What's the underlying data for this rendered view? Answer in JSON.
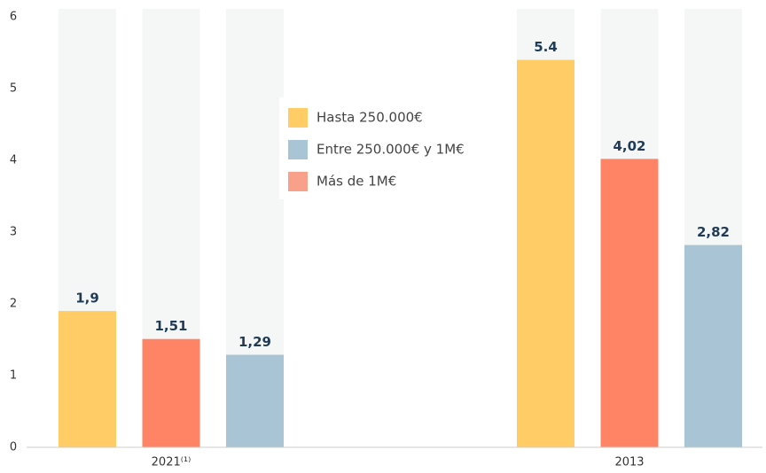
{
  "chart_data": {
    "type": "bar",
    "categories": [
      "2021⁽¹⁾",
      "2013"
    ],
    "series": [
      {
        "name": "Hasta 250.000€",
        "color": "#ffcc66",
        "values": [
          1.9,
          5.4
        ],
        "value_labels": [
          "1,9",
          "5.4"
        ]
      },
      {
        "name": "Entre 250.000€ y 1M€",
        "color": "#a9c4d4",
        "values": [
          1.29,
          2.82
        ],
        "value_labels": [
          "1,29",
          "2,82"
        ]
      },
      {
        "name": "Más de 1M€",
        "color": "#ff8466",
        "values": [
          1.51,
          4.02
        ],
        "value_labels": [
          "1,51",
          "4,02"
        ]
      }
    ],
    "ylim": [
      0,
      6
    ],
    "yticks": [
      0,
      1,
      2,
      3,
      4,
      5,
      6
    ],
    "grid": false
  }
}
